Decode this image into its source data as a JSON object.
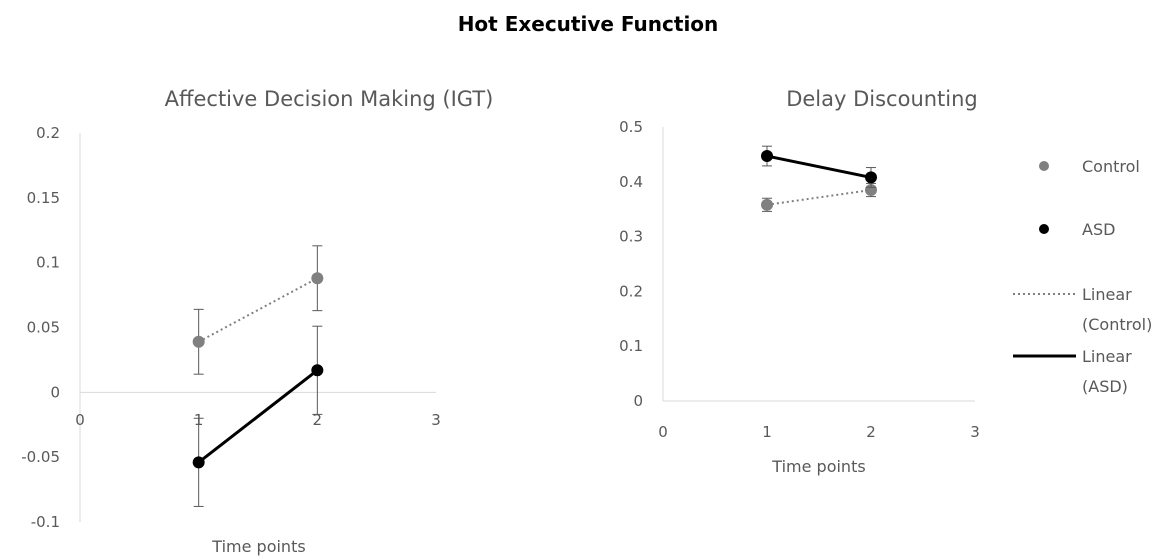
{
  "title": "Hot Executive Function",
  "chart_data": [
    {
      "type": "line",
      "title": "Affective Decision Making (IGT)",
      "xlabel": "Time points",
      "ylabel": "",
      "xlim": [
        0,
        3
      ],
      "ylim": [
        -0.1,
        0.2
      ],
      "x_ticks": [
        "0",
        "1",
        "2",
        "3"
      ],
      "y_ticks": [
        "-0.1",
        "-0.05",
        "0",
        "0.05",
        "0.1",
        "0.15",
        "0.2"
      ],
      "series": [
        {
          "name": "Control",
          "color": "#808080",
          "x": [
            1,
            2
          ],
          "y": [
            0.039,
            0.088
          ],
          "err": [
            0.025,
            0.025
          ],
          "trend": "Linear (Control)",
          "trend_style": "dotted"
        },
        {
          "name": "ASD",
          "color": "#000000",
          "x": [
            1,
            2
          ],
          "y": [
            -0.054,
            0.017
          ],
          "err": [
            0.034,
            0.034
          ],
          "trend": "Linear (ASD)",
          "trend_style": "solid"
        }
      ]
    },
    {
      "type": "line",
      "title": "Delay Discounting",
      "xlabel": "Time points",
      "ylabel": "",
      "xlim": [
        0,
        3
      ],
      "ylim": [
        0,
        0.5
      ],
      "x_ticks": [
        "0",
        "1",
        "2",
        "3"
      ],
      "y_ticks": [
        "0",
        "0.1",
        "0.2",
        "0.3",
        "0.4",
        "0.5"
      ],
      "series": [
        {
          "name": "Control",
          "color": "#808080",
          "x": [
            1,
            2
          ],
          "y": [
            0.358,
            0.385
          ],
          "err": [
            0.012,
            0.012
          ],
          "trend": "Linear (Control)",
          "trend_style": "dotted"
        },
        {
          "name": "ASD",
          "color": "#000000",
          "x": [
            1,
            2
          ],
          "y": [
            0.447,
            0.408
          ],
          "err": [
            0.018,
            0.018
          ],
          "trend": "Linear (ASD)",
          "trend_style": "solid"
        }
      ]
    }
  ],
  "legend": {
    "placement": "right",
    "items": [
      {
        "label": "Control",
        "kind": "marker",
        "color": "#808080"
      },
      {
        "label": "ASD",
        "kind": "marker",
        "color": "#000000"
      },
      {
        "label": "Linear (Control)",
        "lines": [
          "Linear",
          "(Control)"
        ],
        "kind": "dotted",
        "color": "#808080"
      },
      {
        "label": "Linear (ASD)",
        "lines": [
          "Linear",
          "(ASD)"
        ],
        "kind": "solid",
        "color": "#000000"
      }
    ]
  }
}
